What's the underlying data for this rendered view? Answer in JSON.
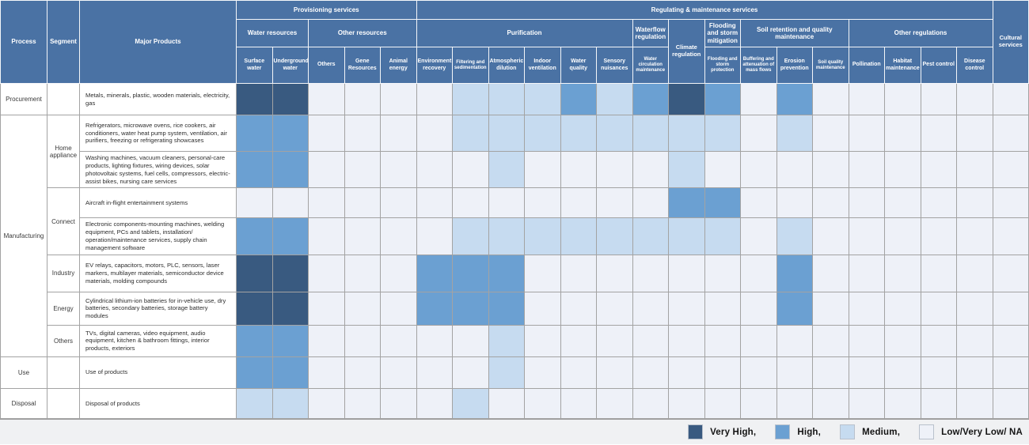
{
  "colors": {
    "header_bg": "#4a72a4",
    "very_high": "#395a80",
    "high": "#6ba0d2",
    "medium": "#c6dbf0",
    "low": "#eef1f8",
    "grid_line": "#a3a3a3",
    "legend_bar_bg": "#f0f1f3"
  },
  "legend": [
    {
      "label": "Very High,",
      "level": 3
    },
    {
      "label": "High,",
      "level": 2
    },
    {
      "label": "Medium,",
      "level": 1
    },
    {
      "label": "Low/Very Low/ NA",
      "level": 0
    }
  ],
  "table": {
    "left_headers": [
      "Process",
      "Segment",
      "Major Products"
    ],
    "groups": [
      {
        "label": "Provisioning services",
        "subgroups": [
          {
            "label": "Water resources",
            "leaves": [
              "Surface water",
              "Underground water"
            ]
          },
          {
            "label": "Other resources",
            "leaves": [
              "Others",
              "Gene Resources",
              "Animal energy"
            ]
          }
        ]
      },
      {
        "label": "Regulating & maintenance services",
        "subgroups": [
          {
            "label": "Purification",
            "leaves": [
              "Environment recovery",
              "Filtering and sedimentation",
              "Atmospheric dilution",
              "Indoor ventilation",
              "Water quality",
              "Sensory nuisances"
            ]
          },
          {
            "label": "Waterflow regulation",
            "leaves": [
              "Water circulation maintenance"
            ]
          },
          {
            "label": "Climate regulation",
            "leaves": []
          },
          {
            "label": "Flooding and storm mitigation",
            "leaves": [
              "Flooding and storm protection"
            ]
          },
          {
            "label": "Soil retention and quality maintenance",
            "leaves": [
              "Buffering and attenuation of mass flows",
              "Erosion prevention",
              "Soil quality maintenance"
            ]
          },
          {
            "label": "Other regulations",
            "leaves": [
              "Pollination",
              "Habitat maintenance",
              "Pest control",
              "Disease control"
            ]
          }
        ]
      },
      {
        "label": "Cultural services",
        "subgroups": null
      }
    ],
    "rows": [
      {
        "process": "Procurement",
        "process_rowspan": 1,
        "segment": "",
        "segment_rowspan": 1,
        "products": "Metals, minerals, plastic, wooden materials, electricity, gas"
      },
      {
        "process": "Manufacturing",
        "process_rowspan": 7,
        "segment": "Home appliance",
        "segment_rowspan": 2,
        "products": "Refrigerators, microwave ovens, rice cookers, air conditioners, water heat pump system, ventilation, air purifiers, freezing or refrigerating showcases"
      },
      {
        "products": "Washing machines, vacuum cleaners, personal-care products, lighting fixtures, wiring devices, solar photovoltaic systems, fuel cells, compressors, electric-assist bikes, nursing care services"
      },
      {
        "segment": "Connect",
        "segment_rowspan": 2,
        "products": "Aircraft in-flight entertainment systems"
      },
      {
        "products": "Electronic components-mounting machines, welding equipment, PCs and tablets, installation/ operation/maintenance services, supply chain management software"
      },
      {
        "segment": "Industry",
        "segment_rowspan": 1,
        "products": "EV relays, capacitors, motors, PLC, sensors, laser markers, multilayer materials, semiconductor device materials, molding compounds"
      },
      {
        "segment": "Energy",
        "segment_rowspan": 1,
        "products": "Cylindrical lithium-ion batteries for in-vehicle use, dry batteries, secondary batteries, storage battery modules"
      },
      {
        "segment": "Others",
        "segment_rowspan": 1,
        "products": "TVs, digital cameras, video equipment, audio equipment, kitchen & bathroom fittings, interior products, exteriors"
      },
      {
        "process": "Use",
        "process_rowspan": 1,
        "segment": "",
        "segment_rowspan": 1,
        "products": "Use of products"
      },
      {
        "process": "Disposal",
        "process_rowspan": 1,
        "segment": "",
        "segment_rowspan": 1,
        "products": "Disposal of products"
      }
    ]
  },
  "chart_data": {
    "type": "heatmap",
    "title": "Ecosystem services impact matrix by process, segment and major products",
    "legend_position": "bottom-right",
    "scale": {
      "3": "Very High",
      "2": "High",
      "1": "Medium",
      "0": "Low/Very Low/NA"
    },
    "columns": [
      "Surface water",
      "Underground water",
      "Others",
      "Gene Resources",
      "Animal energy",
      "Environment recovery",
      "Filtering and sedimentation",
      "Atmospheric dilution",
      "Indoor ventilation",
      "Water quality",
      "Sensory nuisances",
      "Water circulation maintenance",
      "Climate regulation",
      "Flooding and storm protection",
      "Buffering and attenuation of mass flows",
      "Erosion prevention",
      "Soil quality maintenance",
      "Pollination",
      "Habitat maintenance",
      "Pest control",
      "Disease control",
      "Cultural services"
    ],
    "row_labels": [
      "Procurement — Metals, minerals, plastic, wooden materials, electricity, gas",
      "Manufacturing / Home appliance — Refrigerators etc.",
      "Manufacturing / Home appliance — Washing machines etc.",
      "Manufacturing / Connect — Aircraft in-flight entertainment systems",
      "Manufacturing / Connect — Electronic components-mounting machines etc.",
      "Manufacturing / Industry — EV relays etc.",
      "Manufacturing / Energy — Cylindrical lithium-ion batteries etc.",
      "Manufacturing / Others — TVs etc.",
      "Use — Use of products",
      "Disposal — Disposal of products"
    ],
    "values": [
      [
        3,
        3,
        0,
        0,
        0,
        0,
        1,
        1,
        1,
        2,
        1,
        2,
        3,
        2,
        0,
        2,
        0,
        0,
        0,
        0,
        0,
        0
      ],
      [
        2,
        2,
        0,
        0,
        0,
        0,
        1,
        1,
        1,
        1,
        1,
        1,
        1,
        1,
        0,
        1,
        0,
        0,
        0,
        0,
        0,
        0
      ],
      [
        2,
        2,
        0,
        0,
        0,
        0,
        0,
        1,
        0,
        0,
        0,
        0,
        1,
        0,
        0,
        0,
        0,
        0,
        0,
        0,
        0,
        0
      ],
      [
        0,
        0,
        0,
        0,
        0,
        0,
        0,
        0,
        0,
        0,
        0,
        0,
        2,
        2,
        0,
        0,
        0,
        0,
        0,
        0,
        0,
        0
      ],
      [
        2,
        2,
        0,
        0,
        0,
        0,
        1,
        1,
        1,
        1,
        1,
        1,
        1,
        1,
        0,
        1,
        0,
        0,
        0,
        0,
        0,
        0
      ],
      [
        3,
        3,
        0,
        0,
        0,
        2,
        2,
        2,
        0,
        0,
        0,
        0,
        0,
        0,
        0,
        2,
        0,
        0,
        0,
        0,
        0,
        0
      ],
      [
        3,
        3,
        0,
        0,
        0,
        2,
        2,
        2,
        0,
        0,
        0,
        0,
        0,
        0,
        0,
        2,
        0,
        0,
        0,
        0,
        0,
        0
      ],
      [
        2,
        2,
        0,
        0,
        0,
        0,
        0,
        1,
        0,
        0,
        0,
        0,
        0,
        0,
        0,
        0,
        0,
        0,
        0,
        0,
        0,
        0
      ],
      [
        2,
        2,
        0,
        0,
        0,
        0,
        0,
        1,
        0,
        0,
        0,
        0,
        0,
        0,
        0,
        0,
        0,
        0,
        0,
        0,
        0,
        0
      ],
      [
        1,
        1,
        0,
        0,
        0,
        0,
        1,
        0,
        0,
        0,
        0,
        0,
        0,
        0,
        0,
        0,
        0,
        0,
        0,
        0,
        0,
        0
      ]
    ]
  }
}
